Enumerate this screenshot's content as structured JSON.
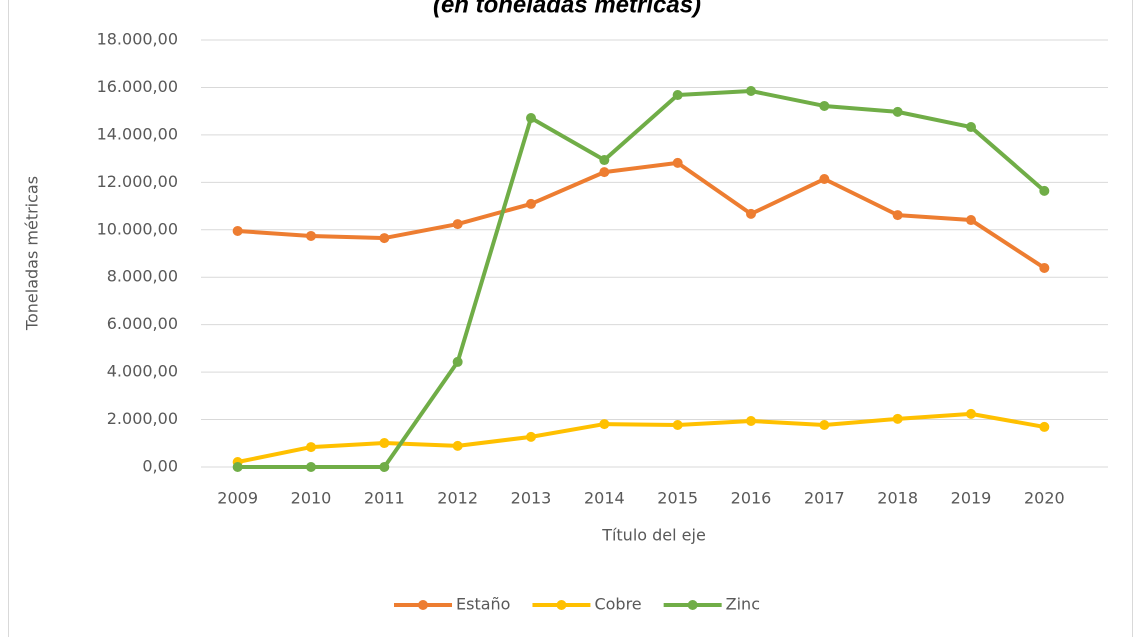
{
  "chart_data": {
    "type": "line",
    "title": "(en toneladas métricas)",
    "y_label": "Toneladas métricas",
    "x_label": "Título del eje",
    "categories": [
      "2009",
      "2010",
      "2011",
      "2012",
      "2013",
      "2014",
      "2015",
      "2016",
      "2017",
      "2018",
      "2019",
      "2020"
    ],
    "series": [
      {
        "name": "Estaño",
        "color": "#ed7d31",
        "values": [
          9950,
          9740,
          9650,
          10240,
          11090,
          12430,
          12820,
          10670,
          12140,
          10620,
          10410,
          8390
        ]
      },
      {
        "name": "Cobre",
        "color": "#ffc000",
        "values": [
          210,
          840,
          1010,
          890,
          1270,
          1810,
          1770,
          1940,
          1770,
          2030,
          2240,
          1690
        ]
      },
      {
        "name": "Zinc",
        "color": "#70ad47",
        "values": [
          0,
          0,
          0,
          4430,
          14710,
          12940,
          15680,
          15850,
          15220,
          14970,
          14330,
          11640
        ]
      }
    ],
    "ylim": [
      0,
      18000
    ],
    "yticks": [
      {
        "value": 0,
        "label": "0,00"
      },
      {
        "value": 2000,
        "label": "2.000,00"
      },
      {
        "value": 4000,
        "label": "4.000,00"
      },
      {
        "value": 6000,
        "label": "6.000,00"
      },
      {
        "value": 8000,
        "label": "8.000,00"
      },
      {
        "value": 10000,
        "label": "10.000,00"
      },
      {
        "value": 12000,
        "label": "12.000,00"
      },
      {
        "value": 14000,
        "label": "14.000,00"
      },
      {
        "value": 16000,
        "label": "16.000,00"
      },
      {
        "value": 18000,
        "label": "18.000,00"
      }
    ],
    "grid": true,
    "legend": "bottom"
  }
}
